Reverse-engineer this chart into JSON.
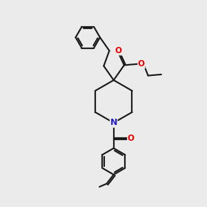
{
  "bg_color": "#ebebeb",
  "line_color": "#1a1a1a",
  "o_color": "#ee0000",
  "n_color": "#2222cc",
  "lw": 1.6,
  "figsize": [
    3.0,
    3.0
  ],
  "dpi": 100,
  "xlim": [
    0,
    10
  ],
  "ylim": [
    0,
    10
  ]
}
